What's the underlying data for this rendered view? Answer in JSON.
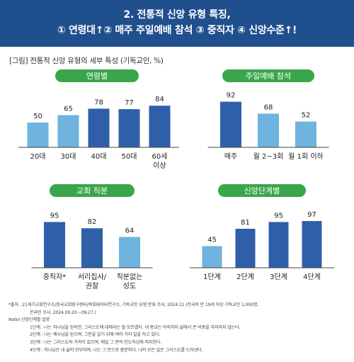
{
  "header": {
    "line1": "2. 전통적 신앙 유형 특징,",
    "line2": "① 연령대↑② 매주 주일예배 참석 ③ 중직자 ④ 신앙수준↑!"
  },
  "figure_title": "[그림] 전통적 신앙 유형의 세부 특성 (기독교인, %)",
  "colors": {
    "light": "#6fb3df",
    "dark": "#2f5fa8",
    "pill": "#3aa64b",
    "axis": "#444444"
  },
  "chart_data": [
    {
      "type": "bar",
      "title": "연령별",
      "categories": [
        "20대",
        "30대",
        "40대",
        "50대",
        "60세\n이상"
      ],
      "values": [
        50,
        65,
        78,
        77,
        84
      ],
      "shades": [
        "light",
        "light",
        "dark",
        "dark",
        "dark"
      ],
      "ylim": [
        0,
        100
      ]
    },
    {
      "type": "bar",
      "title": "주일예배 참석",
      "categories": [
        "매주",
        "월 2~3회",
        "월 1회 이하"
      ],
      "values": [
        92,
        68,
        52
      ],
      "shades": [
        "dark",
        "light",
        "light"
      ],
      "ylim": [
        0,
        100
      ]
    },
    {
      "type": "bar",
      "title": "교회 직분",
      "categories": [
        "중직자*",
        "서리집사/\n권찰",
        "직분없는\n성도"
      ],
      "values": [
        95,
        82,
        64
      ],
      "shades": [
        "dark",
        "dark",
        "light"
      ],
      "ylim": [
        0,
        100
      ]
    },
    {
      "type": "bar",
      "title": "신앙단계별",
      "categories": [
        "1단계",
        "2단계",
        "3단계",
        "4단계"
      ],
      "values": [
        45,
        81,
        95,
        97
      ],
      "shades": [
        "light",
        "dark",
        "dark",
        "dark"
      ],
      "ylim": [
        0,
        100
      ]
    }
  ],
  "footnotes": {
    "source1": "*출처 : 21세기교회연구소/한국교회탐구센터/목회데이터연구소, 기독교인 유형 분류 조사, 2024.11 (전국의 만 19세 이상 기독교인 1,000명,",
    "source2": "온라인 조사, 2024.09.20.~09.27.)",
    "note_title": "Note) 신앙단계별 설명",
    "step1": "1단계 : 나는 하나님을 믿지만, 그리스도에 대해서는 잘 모르겠다. 내 종교는 아직까지 삶에서 큰 비중을 차지하지 않는다.",
    "step2": "2단계 : 나는 예수님을 믿으며, 그분을 알기 위해 여러 가지 일을 하고 있다.",
    "step3": "3단계 : 나는 그리스도와 가까이 있으며, 매일 그 분의 인도하심에 의지한다.",
    "step4": "4단계 : 하나님은 내 삶의 전부이며, 나는 그 분으로 충분하다. 나의 모든 일은 그리스도를 드러낸다."
  }
}
